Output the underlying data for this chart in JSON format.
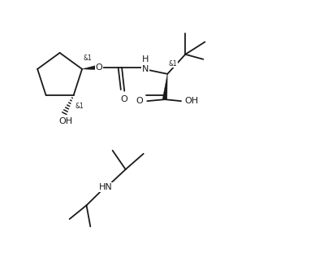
{
  "background_color": "#ffffff",
  "line_color": "#1a1a1a",
  "line_width": 1.3,
  "font_size_label": 8.0,
  "font_size_stereo": 5.5,
  "figsize": [
    4.04,
    3.44
  ],
  "dpi": 100,
  "xlim": [
    0,
    10
  ],
  "ylim": [
    0,
    8.5
  ]
}
